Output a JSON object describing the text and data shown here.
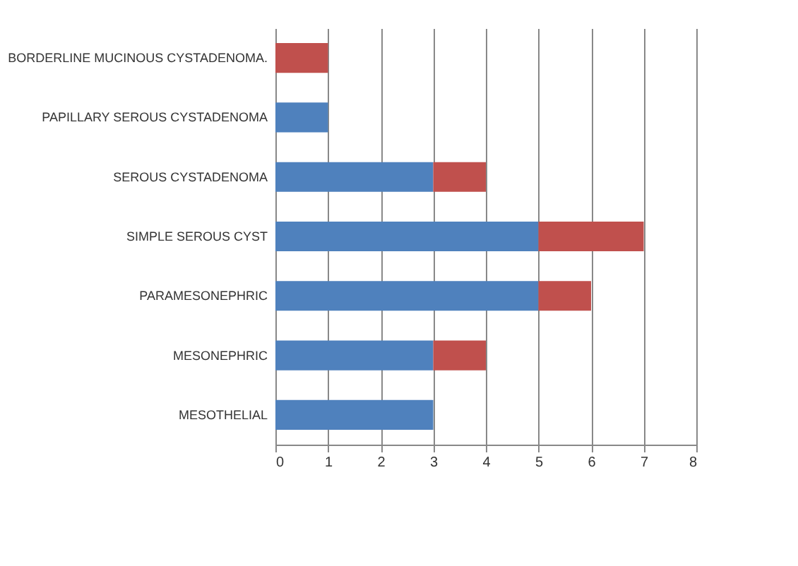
{
  "chart_data": {
    "type": "bar",
    "orientation": "horizontal",
    "stacked": true,
    "categories": [
      "BORDERLINE MUCINOUS CYSTADENOMA.",
      "PAPILLARY SEROUS CYSTADENOMA",
      "SEROUS CYSTADENOMA",
      "SIMPLE SEROUS CYST",
      "PARAMESONEPHRIC",
      "MESONEPHRIC",
      "MESOTHELIAL"
    ],
    "series": [
      {
        "color": "#4f81bd",
        "values": [
          0,
          1,
          3,
          5,
          5,
          3,
          3
        ]
      },
      {
        "color": "#c0504d",
        "values": [
          1,
          0,
          1,
          2,
          1,
          1,
          0
        ]
      }
    ],
    "xlim": [
      0,
      8
    ],
    "xticks": [
      0,
      1,
      2,
      3,
      4,
      5,
      6,
      7,
      8
    ],
    "grid": "x"
  }
}
